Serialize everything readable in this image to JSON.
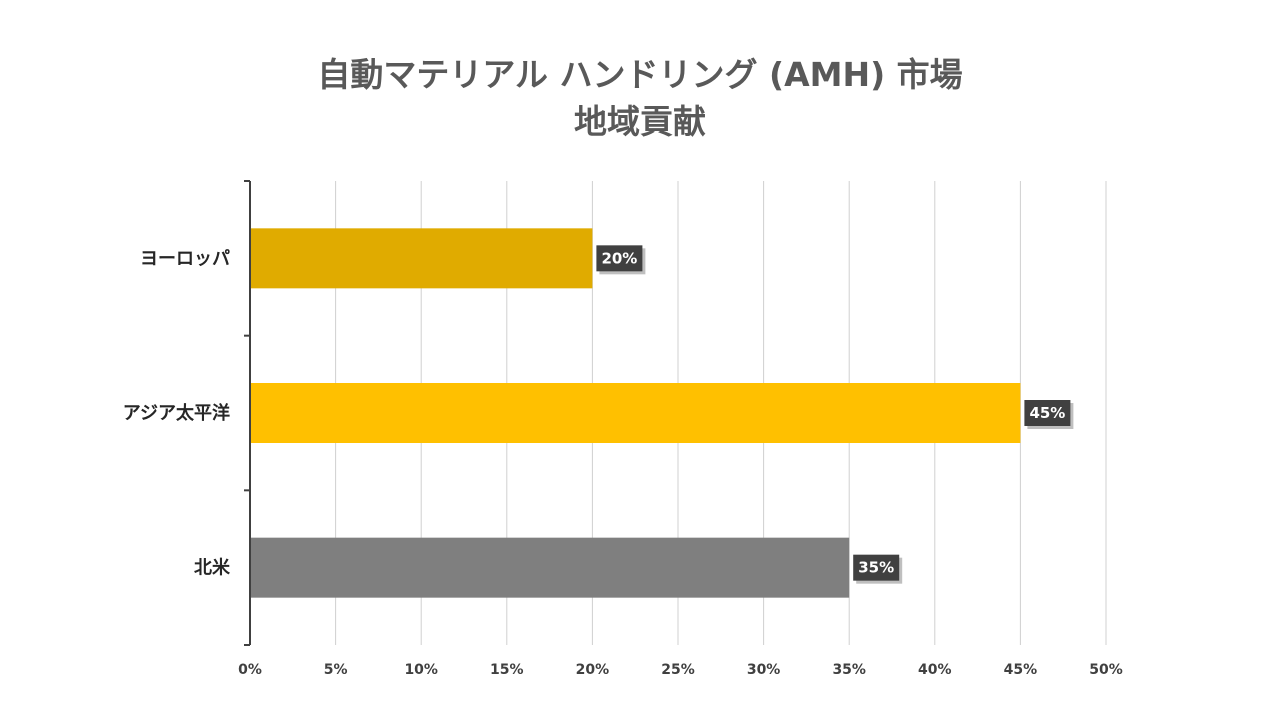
{
  "chart_data": {
    "type": "bar",
    "orientation": "horizontal",
    "title_lines": [
      "自動マテリアル ハンドリング (AMH) 市場",
      "地域貢献"
    ],
    "categories": [
      "ヨーロッパ",
      "アジア太平洋",
      "北米"
    ],
    "values": [
      20,
      45,
      35
    ],
    "data_labels": [
      "20%",
      "45%",
      "35%"
    ],
    "bar_colors": [
      "#E0AB00",
      "#FFC000",
      "#7F7F7F"
    ],
    "x_ticks": [
      "0%",
      "5%",
      "10%",
      "15%",
      "20%",
      "25%",
      "30%",
      "35%",
      "40%",
      "45%",
      "50%"
    ],
    "xlim": [
      0,
      50
    ],
    "grid": true,
    "legend": "none"
  }
}
